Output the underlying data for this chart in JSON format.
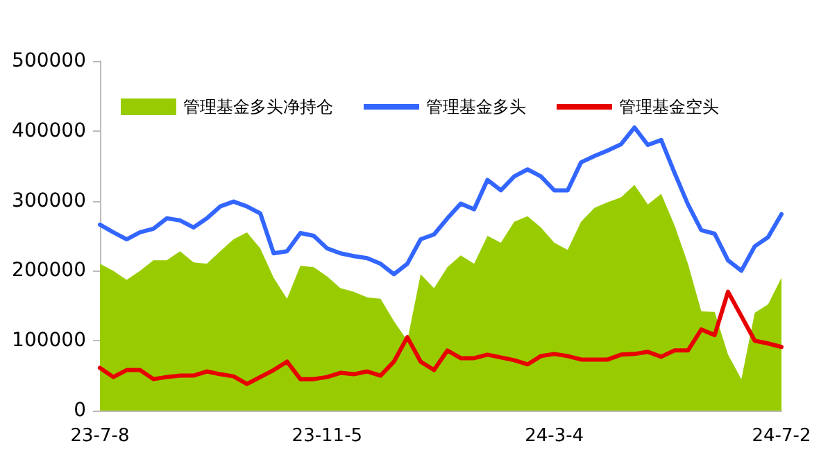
{
  "chart_data": {
    "type": "area",
    "categories": [
      "23-7-8",
      null,
      null,
      null,
      null,
      null,
      null,
      null,
      null,
      null,
      null,
      null,
      null,
      null,
      null,
      null,
      null,
      "23-11-5",
      null,
      null,
      null,
      null,
      null,
      null,
      null,
      null,
      null,
      null,
      null,
      null,
      null,
      null,
      null,
      null,
      "24-3-4",
      null,
      null,
      null,
      null,
      null,
      null,
      null,
      null,
      null,
      null,
      null,
      null,
      null,
      null,
      null,
      null,
      "24-7-2"
    ],
    "series": [
      {
        "name": "管理基金多头净持仓",
        "color": "#99cc00",
        "values": [
          210000,
          200000,
          187000,
          200000,
          215000,
          215000,
          228000,
          212000,
          210000,
          228000,
          245000,
          255000,
          232000,
          190000,
          160000,
          207000,
          205000,
          192000,
          175000,
          170000,
          162000,
          160000,
          128000,
          100000,
          195000,
          175000,
          205000,
          222000,
          210000,
          250000,
          240000,
          270000,
          278000,
          262000,
          240000,
          230000,
          270000,
          290000,
          298000,
          305000,
          323000,
          295000,
          310000,
          265000,
          210000,
          142000,
          141000,
          80000,
          45000,
          140000,
          152000,
          190000
        ]
      },
      {
        "name": "管理基金多头",
        "type": "line",
        "color": "#3366ff",
        "values": [
          266000,
          255000,
          245000,
          255000,
          260000,
          275000,
          272000,
          262000,
          275000,
          292000,
          299000,
          292000,
          282000,
          225000,
          228000,
          254000,
          250000,
          232000,
          225000,
          221000,
          218000,
          210000,
          195000,
          210000,
          245000,
          252000,
          275000,
          296000,
          288000,
          330000,
          315000,
          335000,
          345000,
          335000,
          315000,
          315000,
          355000,
          364000,
          372000,
          381000,
          405000,
          380000,
          387000,
          340000,
          295000,
          258000,
          253000,
          215000,
          200000,
          235000,
          248000,
          281000
        ]
      },
      {
        "name": "管理基金空头",
        "type": "line",
        "color": "#e60000",
        "values": [
          61000,
          48000,
          58000,
          58000,
          45000,
          48000,
          50000,
          50000,
          56000,
          52000,
          49000,
          38000,
          48000,
          58000,
          70000,
          45000,
          45000,
          48000,
          54000,
          52000,
          56000,
          50000,
          70000,
          105000,
          70000,
          58000,
          86000,
          75000,
          75000,
          80000,
          76000,
          72000,
          66000,
          78000,
          81000,
          78000,
          73000,
          73000,
          73000,
          80000,
          81000,
          84000,
          77000,
          86000,
          86000,
          116000,
          108000,
          170000,
          135000,
          100000,
          96000,
          91000
        ]
      }
    ],
    "ylim": [
      0,
      500000
    ],
    "yticks": [
      0,
      100000,
      200000,
      300000,
      400000,
      500000
    ],
    "grid": false,
    "legend": "top",
    "marker": "none",
    "line_style": "solid"
  }
}
